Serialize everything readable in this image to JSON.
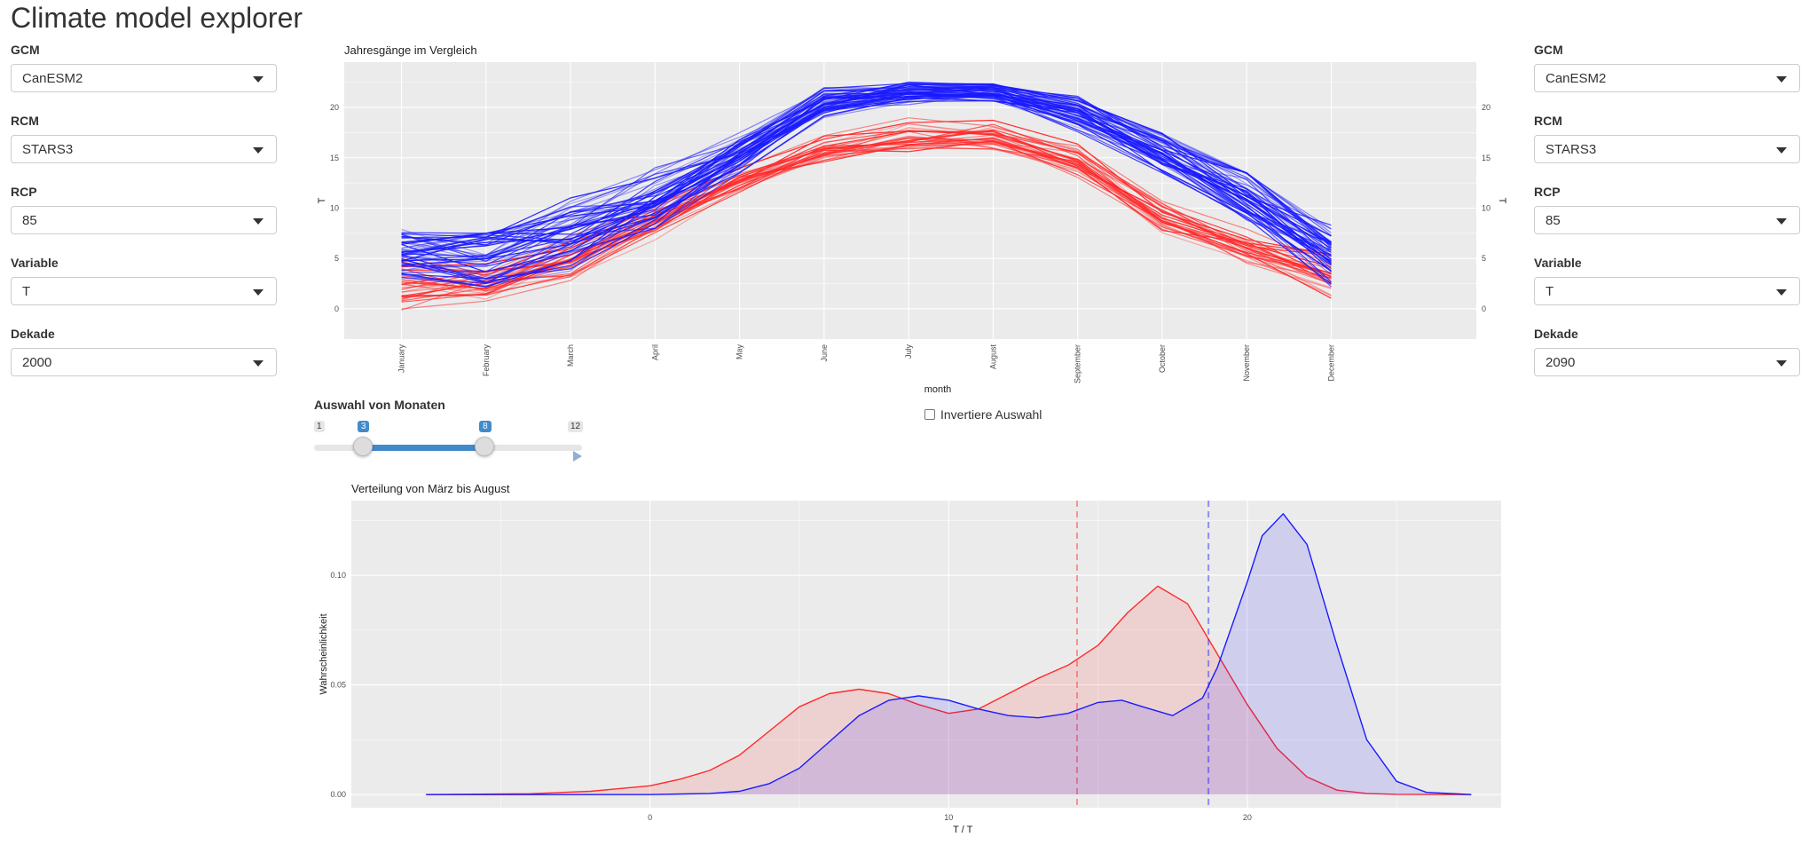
{
  "app": {
    "title": "Climate model explorer"
  },
  "left": {
    "controls": [
      {
        "label": "GCM",
        "value": "CanESM2"
      },
      {
        "label": "RCM",
        "value": "STARS3"
      },
      {
        "label": "RCP",
        "value": "85"
      },
      {
        "label": "Variable",
        "value": "T"
      },
      {
        "label": "Dekade",
        "value": "2000"
      }
    ]
  },
  "right": {
    "controls": [
      {
        "label": "GCM",
        "value": "CanESM2"
      },
      {
        "label": "RCM",
        "value": "STARS3"
      },
      {
        "label": "RCP",
        "value": "85"
      },
      {
        "label": "Variable",
        "value": "T"
      },
      {
        "label": "Dekade",
        "value": "2090"
      }
    ]
  },
  "slider": {
    "label": "Auswahl von Monaten",
    "min": 1,
    "max": 12,
    "from": 3,
    "to": 8,
    "min_label": "1",
    "max_label": "12",
    "from_label": "3",
    "to_label": "8"
  },
  "invert": {
    "label": "Invertiere Auswahl",
    "checked": false
  },
  "colors": {
    "decade_left": "#ff2a2a",
    "decade_right": "#1a1aff",
    "panel_bg": "#ebebeb",
    "accent": "#428bca"
  },
  "chart_data": [
    {
      "type": "line",
      "title": "Jahresgänge im Vergleich",
      "xlabel": "month",
      "ylabel": "T",
      "categories": [
        "January",
        "February",
        "March",
        "April",
        "May",
        "June",
        "July",
        "August",
        "September",
        "October",
        "November",
        "December"
      ],
      "ylim": [
        -3,
        24.5
      ],
      "yticks": [
        0,
        5,
        10,
        15,
        20
      ],
      "grid": true,
      "ensembles": [
        {
          "decade": "2000",
          "color": "#ff2a2a",
          "members": 30,
          "mean": [
            2.5,
            2.8,
            5.0,
            8.8,
            12.8,
            16.0,
            17.4,
            17.3,
            14.8,
            9.5,
            6.2,
            3.8
          ],
          "min": [
            -1.5,
            -0.5,
            1.5,
            6.5,
            11.0,
            14.2,
            15.2,
            15.8,
            12.5,
            7.0,
            4.0,
            -2.0
          ],
          "max": [
            5.5,
            5.5,
            7.5,
            11.0,
            14.5,
            18.2,
            21.0,
            19.5,
            17.5,
            12.5,
            8.5,
            6.0
          ]
        },
        {
          "decade": "2090",
          "color": "#1a1aff",
          "members": 50,
          "mean": [
            5.4,
            5.3,
            7.3,
            10.8,
            15.4,
            20.4,
            21.5,
            21.4,
            19.6,
            15.4,
            11.2,
            5.6
          ],
          "min": [
            2.0,
            -1.5,
            2.5,
            8.0,
            13.5,
            18.5,
            20.0,
            20.0,
            17.5,
            12.5,
            6.5,
            0.0
          ],
          "max": [
            8.3,
            7.5,
            11.5,
            15.5,
            18.5,
            22.3,
            23.0,
            22.5,
            22.2,
            17.5,
            13.5,
            8.5
          ]
        }
      ]
    },
    {
      "type": "area",
      "title": "Verteilung von März bis August",
      "xlabel": "T / T",
      "ylabel": "Wahrscheinlichkeit",
      "xlim": [
        -10,
        28.5
      ],
      "ylim": [
        -0.006,
        0.134
      ],
      "xticks": [
        0,
        10,
        20
      ],
      "yticks": [
        0.0,
        0.05,
        0.1
      ],
      "ytick_labels": [
        "0.00",
        "0.05",
        "0.10"
      ],
      "grid": true,
      "series": [
        {
          "color": "#ff2a2a",
          "x": [
            -7.5,
            -4,
            -2,
            0,
            1,
            2,
            3,
            4,
            5,
            6,
            7,
            8,
            9,
            10,
            11,
            12,
            13,
            14,
            15,
            16,
            17,
            18,
            19,
            20,
            21,
            22,
            23,
            24,
            25,
            27.5
          ],
          "y": [
            0,
            0.0004,
            0.0015,
            0.004,
            0.007,
            0.011,
            0.018,
            0.029,
            0.04,
            0.046,
            0.048,
            0.046,
            0.041,
            0.037,
            0.039,
            0.046,
            0.053,
            0.059,
            0.068,
            0.083,
            0.095,
            0.087,
            0.064,
            0.041,
            0.021,
            0.008,
            0.002,
            0.0005,
            0.0001,
            0
          ],
          "mean_line": 14.3
        },
        {
          "color": "#1a1aff",
          "x": [
            -7.5,
            0,
            2,
            3,
            4,
            5,
            6,
            7,
            8,
            9,
            10,
            11,
            12,
            13,
            14,
            15,
            15.8,
            16.5,
            17.5,
            18.5,
            19,
            20,
            20.5,
            21.2,
            22,
            23,
            24,
            25,
            26,
            27.5
          ],
          "y": [
            0,
            0,
            0.0005,
            0.0015,
            0.005,
            0.012,
            0.024,
            0.036,
            0.043,
            0.045,
            0.043,
            0.039,
            0.036,
            0.035,
            0.037,
            0.042,
            0.043,
            0.04,
            0.036,
            0.044,
            0.058,
            0.097,
            0.118,
            0.128,
            0.114,
            0.068,
            0.025,
            0.006,
            0.001,
            0
          ],
          "mean_line": 18.7
        }
      ]
    }
  ]
}
